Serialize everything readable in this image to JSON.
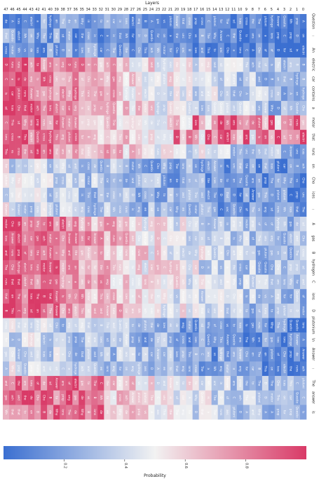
{
  "chart_data": {
    "type": "heatmap",
    "title": "",
    "xlabel": "Layers",
    "ylabel": "",
    "colorbar_label": "Probability",
    "colorbar_ticks": [
      "0.2",
      "0.4",
      "0.6",
      "0.8"
    ],
    "colorbar_tick_values": [
      0.2,
      0.4,
      0.6,
      0.8
    ],
    "color_range": [
      0.0,
      1.0
    ],
    "colormap": {
      "low": "#3b6fd1",
      "mid": "#f2f2f2",
      "high": "#d93a67"
    },
    "layers": [
      47,
      46,
      45,
      44,
      43,
      42,
      41,
      40,
      39,
      38,
      37,
      36,
      35,
      34,
      33,
      32,
      31,
      30,
      29,
      28,
      27,
      26,
      25,
      24,
      23,
      22,
      21,
      20,
      19,
      18,
      17,
      16,
      15,
      14,
      13,
      12,
      11,
      10,
      9,
      8,
      7,
      6,
      5,
      4,
      3,
      2,
      1,
      0
    ],
    "tokens": [
      "Question",
      ":",
      "An",
      "electric",
      "car",
      "contains",
      "a",
      "motor",
      "that",
      "runs",
      "on",
      "Cho",
      "ices",
      ":",
      "A",
      "gas",
      "B",
      "hydrogen",
      "C",
      "ions",
      "D",
      "plutonium",
      "\\n",
      "Answer",
      ":",
      "The",
      "answer",
      "is"
    ],
    "token_label_positions": [
      0,
      1,
      2,
      3,
      4,
      5,
      6,
      7,
      8,
      9,
      10,
      11,
      12,
      13,
      14,
      15,
      16,
      17,
      18,
      19,
      20,
      21,
      22,
      23,
      24,
      25,
      26,
      27
    ],
    "predicted_words": [
      "Question",
      "Answer",
      "electric",
      "The",
      "motor",
      "hydrogen",
      "ions",
      "gas",
      "car",
      "that",
      "runs",
      "plutonium",
      "vs",
      "ans",
      "unc",
      "ices",
      "prop",
      "ach",
      "Cho",
      "sd",
      "cross",
      "de",
      "Why",
      "Wh",
      "This",
      "eng",
      "the",
      "in",
      "to",
      "C",
      "B",
      "A",
      "D",
      "a",
      "on",
      "of",
      "en",
      "for",
      "and",
      "is"
    ]
  }
}
